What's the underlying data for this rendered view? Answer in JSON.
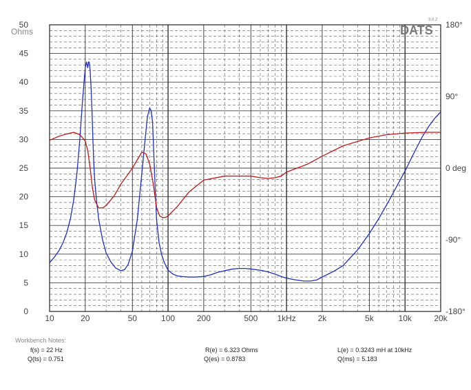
{
  "chart_data": {
    "type": "line",
    "logo": "DATS",
    "version": "3.0.2",
    "x_scale": "log",
    "xlim": [
      10,
      20000
    ],
    "ylim_left": [
      0,
      50
    ],
    "ylim_right": [
      -180,
      180
    ],
    "grid": true,
    "x_ticks": [
      {
        "v": 10,
        "label": "10"
      },
      {
        "v": 20,
        "label": "20"
      },
      {
        "v": 50,
        "label": "50"
      },
      {
        "v": 100,
        "label": "100"
      },
      {
        "v": 200,
        "label": "200"
      },
      {
        "v": 500,
        "label": "500"
      },
      {
        "v": 1000,
        "label": "1kHz"
      },
      {
        "v": 2000,
        "label": "2k"
      },
      {
        "v": 5000,
        "label": "5k"
      },
      {
        "v": 10000,
        "label": "10k"
      },
      {
        "v": 20000,
        "label": "20k"
      }
    ],
    "y_left_unit": "Ohms",
    "y_left_ticks": [
      {
        "v": 50,
        "label": "50"
      },
      {
        "v": 45,
        "label": "45"
      },
      {
        "v": 40,
        "label": "40"
      },
      {
        "v": 35,
        "label": "35"
      },
      {
        "v": 30,
        "label": "30"
      },
      {
        "v": 25,
        "label": "25"
      },
      {
        "v": 20,
        "label": "20"
      },
      {
        "v": 15,
        "label": "15"
      },
      {
        "v": 10,
        "label": "10"
      },
      {
        "v": 5,
        "label": "5"
      },
      {
        "v": 0,
        "label": "0"
      }
    ],
    "y_right_ticks": [
      {
        "v": 180,
        "label": "180°"
      },
      {
        "v": 90,
        "label": "90°"
      },
      {
        "v": 0,
        "label": "0 deg"
      },
      {
        "v": -90,
        "label": "-90°"
      },
      {
        "v": -180,
        "label": "-180°"
      }
    ],
    "series": [
      {
        "axis": "left",
        "color": "#1f2fbf",
        "x": [
          10,
          11,
          12,
          13,
          14,
          15,
          16,
          17,
          18,
          19,
          20,
          20.5,
          21,
          21.3,
          21.6,
          22,
          22.4,
          22.8,
          23.2,
          23.6,
          24,
          25,
          26,
          28,
          30,
          33,
          36,
          40,
          43,
          46,
          50,
          55,
          60,
          64,
          67,
          70,
          72,
          74,
          76,
          78,
          80,
          84,
          88,
          92,
          96,
          100,
          110,
          120,
          130,
          150,
          170,
          200,
          230,
          260,
          300,
          350,
          400,
          450,
          500,
          600,
          700,
          800,
          900,
          1000,
          1200,
          1400,
          1600,
          1800,
          2000,
          2500,
          3000,
          4000,
          5000,
          6000,
          7000,
          8000,
          10000,
          12000,
          14000,
          16000,
          18000,
          20000
        ],
        "y": [
          8.5,
          9.5,
          10.6,
          12,
          13.8,
          16.2,
          19.5,
          24,
          30,
          37,
          42.5,
          43.5,
          42.5,
          43.5,
          43.5,
          42,
          39,
          35,
          30,
          26,
          23,
          19,
          16,
          12.5,
          10.2,
          8.6,
          7.6,
          7.1,
          7.3,
          8.2,
          10.5,
          16,
          24,
          30,
          34,
          35.5,
          35,
          33,
          27,
          21,
          16,
          12,
          10,
          8.8,
          7.9,
          7.2,
          6.5,
          6.2,
          6.1,
          6.0,
          6.0,
          6.1,
          6.4,
          6.8,
          7.1,
          7.4,
          7.5,
          7.5,
          7.4,
          7.2,
          6.9,
          6.5,
          6.1,
          5.8,
          5.5,
          5.3,
          5.3,
          5.5,
          6.0,
          7.0,
          8.0,
          10.8,
          13.6,
          16.2,
          18.6,
          20.8,
          24.5,
          27.8,
          30.5,
          32.4,
          33.8,
          34.8
        ]
      },
      {
        "axis": "right",
        "color": "#c01818",
        "x": [
          10,
          12,
          14,
          16,
          18,
          19,
          20,
          21,
          22,
          23,
          24,
          26,
          28,
          30,
          35,
          40,
          50,
          60,
          65,
          70,
          75,
          80,
          85,
          90,
          95,
          100,
          120,
          150,
          200,
          300,
          400,
          500,
          600,
          700,
          800,
          900,
          1000,
          1500,
          2000,
          3000,
          5000,
          7000,
          10000,
          15000,
          20000
        ],
        "y": [
          35,
          40,
          43,
          45,
          42,
          38,
          34,
          22,
          0,
          -25,
          -40,
          -50,
          -50,
          -47,
          -35,
          -20,
          0,
          20,
          18,
          5,
          -20,
          -50,
          -60,
          -62,
          -62,
          -60,
          -48,
          -30,
          -15,
          -10,
          -10,
          -10,
          -12,
          -13,
          -12,
          -10,
          -5,
          5,
          15,
          28,
          38,
          42,
          44,
          45,
          45
        ]
      }
    ]
  },
  "notes": {
    "heading": "Workbench Notes:",
    "fs": "f(s) = 22 Hz",
    "qts": "Q(ts) = 0.751",
    "re": "R(e) = 6.323 Ohms",
    "qes": "Q(es) = 0.8783",
    "le": "L(e) = 0.3243 mH at 10kHz",
    "qms": "Q(ms) = 5.183"
  }
}
